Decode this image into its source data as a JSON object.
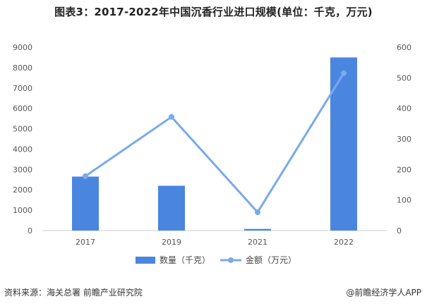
{
  "title": "图表3：2017-2022年中国沉香行业进口规模(单位：千克，万元)",
  "source": "资料来源：海关总署 前瞻产业研究院",
  "brand": "@前瞻经济学人APP",
  "chart_data": {
    "type": "bar",
    "categories": [
      "2017",
      "2019",
      "2021",
      "2022"
    ],
    "series": [
      {
        "name": "数量（千克）",
        "type": "bar",
        "axis": "left",
        "values": [
          2650,
          2200,
          80,
          8500
        ],
        "color": "#4a86e0"
      },
      {
        "name": "金额（万元）",
        "type": "line",
        "axis": "right",
        "values": [
          178,
          372,
          60,
          515
        ],
        "color": "#7aa9ec"
      }
    ],
    "ylim_left": [
      0,
      9000
    ],
    "yticks_left": [
      "0",
      "1000",
      "2000",
      "3000",
      "4000",
      "5000",
      "6000",
      "7000",
      "8000",
      "9000"
    ],
    "ylim_right": [
      0,
      600
    ],
    "yticks_right": [
      "0",
      "100",
      "200",
      "300",
      "400",
      "500",
      "600"
    ],
    "grid": false,
    "legend": "bottom"
  }
}
